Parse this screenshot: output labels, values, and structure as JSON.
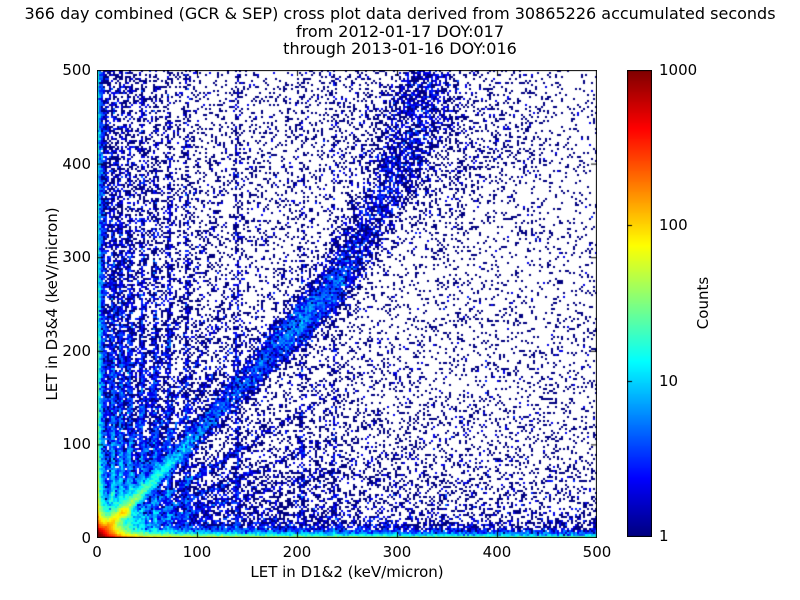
{
  "chart_data": {
    "type": "heatmap",
    "title_lines": [
      "366 day combined (GCR & SEP) cross plot data derived from 30865226 accumulated seconds",
      "from 2012-01-17 DOY:017",
      "through 2013-01-16 DOY:016"
    ],
    "xlabel": "LET in D1&2 (keV/micron)",
    "ylabel": "LET in D3&4 (keV/micron)",
    "xlim": [
      0,
      500
    ],
    "ylim": [
      0,
      500
    ],
    "xticks": [
      0,
      100,
      200,
      300,
      400,
      500
    ],
    "yticks": [
      0,
      100,
      200,
      300,
      400,
      500
    ],
    "grid": false,
    "background": "#ffffff",
    "colormap": "jet",
    "point_color_min": "#00008f",
    "colorbar": {
      "label": "Counts",
      "scale": "log",
      "min": 1,
      "max": 1000,
      "ticks": [
        1000,
        100,
        10,
        1
      ],
      "position": "right"
    },
    "density_features": [
      {
        "type": "biexp",
        "n": 20000,
        "sx": 8,
        "sy": 7
      },
      {
        "type": "hband",
        "n": 21000,
        "xpow": 3.0,
        "sy": 2.8
      },
      {
        "type": "vband",
        "n": 9000,
        "ypow": 3.0,
        "sx": 2.6
      },
      {
        "type": "path_band",
        "n": 14000,
        "path": [
          [
            0,
            0
          ],
          [
            70,
            78
          ],
          [
            150,
            168
          ],
          [
            240,
            272
          ],
          [
            300,
            390
          ],
          [
            336,
            500
          ]
        ],
        "w0": 2.5,
        "w1": 16,
        "amp": 3.2,
        "decay": 0.09,
        "base": 0.28,
        "bump_t": 0.52,
        "bump_a": 0.55,
        "bump_s": 0.11
      },
      {
        "type": "ray",
        "n": 2600,
        "slope": 1.07,
        "len": 25,
        "width": 2.2
      },
      {
        "type": "ray",
        "n": 900,
        "slope": 2.9,
        "len": 30,
        "width": 2
      },
      {
        "type": "ray",
        "n": 1000,
        "slope": 1.9,
        "len": 40,
        "width": 2
      },
      {
        "type": "ray",
        "n": 1100,
        "slope": 1.5,
        "len": 45,
        "width": 2
      },
      {
        "type": "ray",
        "n": 1200,
        "slope": 0.66,
        "len": 55,
        "width": 2
      },
      {
        "type": "ray",
        "n": 1000,
        "slope": 0.45,
        "len": 60,
        "width": 2
      },
      {
        "type": "ray",
        "n": 800,
        "slope": 0.3,
        "len": 70,
        "width": 2.2
      },
      {
        "type": "blob",
        "n": 900,
        "cx": 28,
        "cy": 27,
        "sx": 3,
        "sy": 3
      },
      {
        "type": "blob",
        "n": 1700,
        "cx": 330,
        "cy": 430,
        "sx": 60,
        "sy": 50
      },
      {
        "type": "vstreaks",
        "width": 1.6,
        "streaks": [
          [
            16,
            1500,
            120
          ],
          [
            24,
            1300,
            140
          ],
          [
            33,
            1150,
            160
          ],
          [
            45,
            1050,
            260
          ],
          [
            58,
            900,
            200
          ],
          [
            72,
            800,
            220
          ],
          [
            90,
            700,
            320
          ],
          [
            140,
            600,
            380
          ],
          [
            205,
            400,
            340
          ],
          [
            237,
            350,
            430
          ]
        ]
      },
      {
        "type": "bg_pow",
        "n": 24000,
        "xpow": 2.6,
        "ypow": 2.6
      },
      {
        "type": "uniform",
        "n": 1800
      }
    ]
  }
}
